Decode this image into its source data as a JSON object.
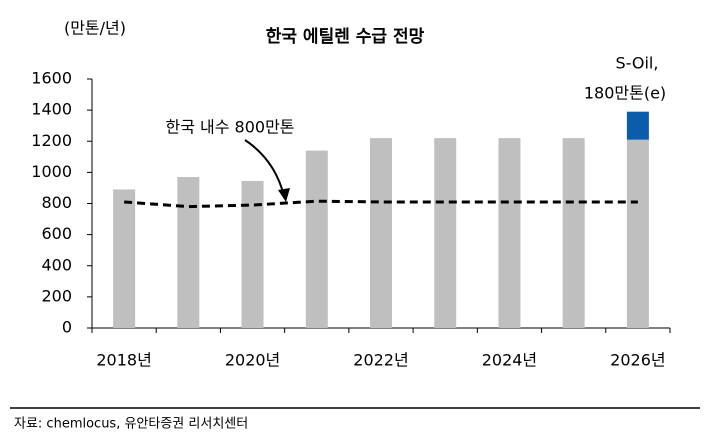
{
  "chart_data": {
    "type": "bar",
    "title": "한국 에틸렌 수급 전망",
    "y_axis_label": "(만톤/년)",
    "categories": [
      "2018년",
      null,
      "2020년",
      null,
      "2022년",
      null,
      "2024년",
      null,
      "2026년"
    ],
    "series": [
      {
        "type": "bar",
        "color": "#bfbfbf",
        "values": [
          890,
          970,
          945,
          1140,
          1220,
          1220,
          1220,
          1220,
          1210
        ]
      },
      {
        "type": "bar",
        "color": "#0b5cad",
        "values": [
          null,
          null,
          null,
          null,
          null,
          null,
          null,
          null,
          180
        ]
      },
      {
        "type": "line",
        "color": "#000000",
        "dashed": true,
        "values": [
          810,
          780,
          790,
          815,
          810,
          810,
          810,
          810,
          810
        ]
      }
    ],
    "stacked": true,
    "ylim": [
      0,
      1600
    ],
    "yticks": [
      0,
      200,
      400,
      600,
      800,
      1000,
      1200,
      1400,
      1600
    ],
    "annotations": [
      "한국 내수 800만톤",
      "S-Oil,",
      "180만톤(e)"
    ],
    "source": "자료: chemlocus, 유안타증권 리서치센터"
  }
}
